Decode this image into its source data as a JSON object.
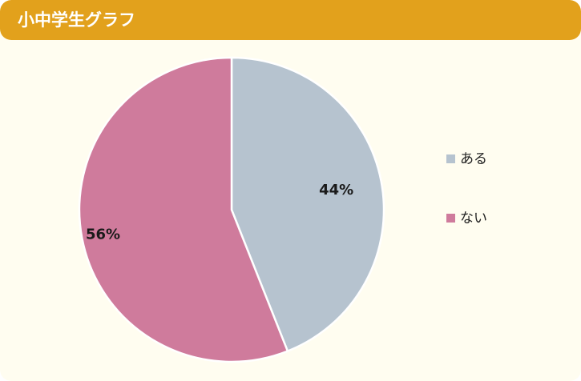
{
  "header": {
    "title": "小中学生グラフ"
  },
  "chart_data": {
    "type": "pie",
    "title": "",
    "slices": [
      {
        "name": "ある",
        "value": 44,
        "label": "44%",
        "color": "#b6c3cf"
      },
      {
        "name": "ない",
        "value": 56,
        "label": "56%",
        "color": "#cf7b9c"
      }
    ],
    "start_angle": "12 o'clock",
    "direction": "clockwise",
    "legend_position": "right",
    "colors": {
      "header": "#e2a11c",
      "background": "#fffdf0",
      "slice_border": "#ffffff"
    }
  }
}
